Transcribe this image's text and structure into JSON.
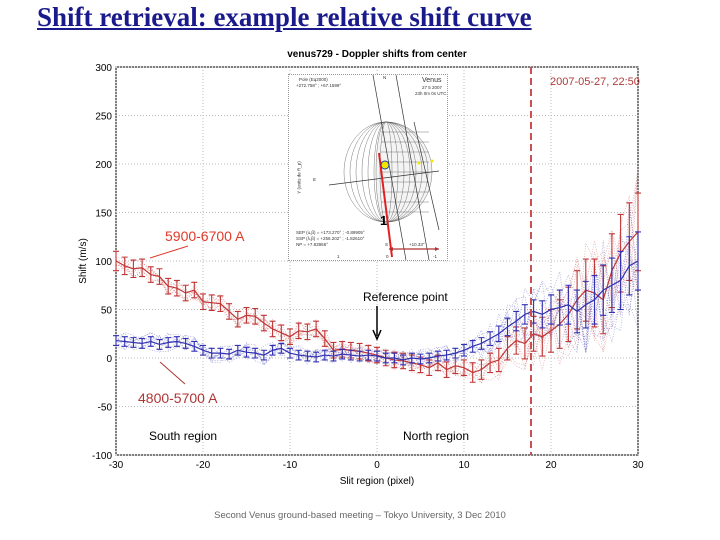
{
  "slide_title": "Shift retrieval: example relative shift curve",
  "footer": "Second Venus ground-based meeting – Tokyo University, 3 Dec 2010",
  "inset": {
    "pole": "Pole (Eq2000)",
    "pole_val": "+272.758° ; +67.1599°",
    "planet": "Venus",
    "date": "27 5 2007",
    "time": "23h 0m 0s UTC",
    "sep": "SEP (u,β) = +173.270° ; -0.89905°",
    "ssp": "SSP (λ,β) = +256.202° ; -1.82610°",
    "np": "NP = +7.83966°",
    "s_label": "S",
    "scale": "+10.33\"",
    "n_label": "N",
    "e_label": "E",
    "ylabel": "Y (units de R_p)",
    "xticks": [
      "1",
      "0",
      "-1"
    ],
    "slit_number": "1",
    "colors": {
      "slit": "#e02020",
      "point": "#f2e600",
      "arrow": "#b03030"
    }
  },
  "chart_data": {
    "type": "line",
    "title": "venus729 - Doppler shifts from center",
    "xlabel": "Slit region (pixel)",
    "ylabel": "Shift (m/s)",
    "xlim": [
      -30,
      30
    ],
    "ylim": [
      -100,
      300
    ],
    "xticks": [
      -30,
      -20,
      -10,
      0,
      10,
      20,
      30
    ],
    "yticks": [
      -100,
      -50,
      0,
      50,
      100,
      150,
      200,
      250,
      300
    ],
    "grid": true,
    "x": [
      -30,
      -29,
      -28,
      -27,
      -26,
      -25,
      -24,
      -23,
      -22,
      -21,
      -20,
      -19,
      -18,
      -17,
      -16,
      -15,
      -14,
      -13,
      -12,
      -11,
      -10,
      -9,
      -8,
      -7,
      -6,
      -5,
      -4,
      -3,
      -2,
      -1,
      0,
      1,
      2,
      3,
      4,
      5,
      6,
      7,
      8,
      9,
      10,
      11,
      12,
      13,
      14,
      15,
      16,
      17,
      18,
      19,
      20,
      21,
      22,
      23,
      24,
      25,
      26,
      27,
      28,
      29,
      30
    ],
    "series": [
      {
        "name": "5900-6700 A",
        "color": "#c03535",
        "values": [
          100,
          95,
          92,
          93,
          86,
          84,
          74,
          72,
          67,
          70,
          58,
          57,
          56,
          48,
          40,
          44,
          43,
          36,
          30,
          26,
          22,
          28,
          27,
          30,
          20,
          8,
          9,
          8,
          7,
          5,
          3,
          0,
          -2,
          -3,
          -5,
          -7,
          -10,
          -5,
          -12,
          -8,
          -10,
          -15,
          -12,
          -5,
          -2,
          10,
          18,
          15,
          25,
          22,
          28,
          35,
          45,
          60,
          70,
          67,
          60,
          90,
          108,
          120,
          130
        ],
        "errors": [
          10,
          9,
          9,
          9,
          8,
          8,
          8,
          8,
          8,
          8,
          8,
          8,
          8,
          8,
          8,
          8,
          8,
          8,
          8,
          8,
          8,
          8,
          8,
          8,
          8,
          8,
          8,
          8,
          8,
          8,
          8,
          8,
          8,
          8,
          8,
          8,
          8,
          8,
          8,
          8,
          8,
          10,
          10,
          10,
          12,
          12,
          14,
          16,
          18,
          20,
          22,
          25,
          28,
          30,
          32,
          35,
          35,
          38,
          40,
          40,
          40
        ]
      },
      {
        "name": "4800-5700 A",
        "color": "#3030b0",
        "values": [
          18,
          17,
          16,
          15,
          17,
          14,
          16,
          17,
          15,
          12,
          8,
          5,
          5,
          4,
          8,
          6,
          5,
          3,
          8,
          10,
          5,
          3,
          2,
          1,
          3,
          2,
          4,
          3,
          2,
          3,
          2,
          0,
          0,
          -2,
          0,
          -1,
          0,
          2,
          3,
          5,
          8,
          12,
          15,
          20,
          25,
          32,
          38,
          45,
          48,
          45,
          50,
          52,
          55,
          48,
          55,
          60,
          70,
          75,
          80,
          95,
          100
        ],
        "errors": [
          5,
          5,
          5,
          5,
          5,
          5,
          5,
          5,
          5,
          5,
          5,
          5,
          5,
          5,
          5,
          5,
          5,
          5,
          5,
          5,
          5,
          5,
          5,
          5,
          5,
          5,
          5,
          5,
          5,
          5,
          5,
          5,
          5,
          5,
          5,
          5,
          5,
          5,
          5,
          5,
          6,
          6,
          6,
          7,
          8,
          9,
          10,
          10,
          12,
          14,
          15,
          18,
          20,
          22,
          24,
          25,
          26,
          28,
          30,
          30,
          30
        ]
      }
    ],
    "annotations": {
      "red_label": "5900-6700 A",
      "blue_label": "4800-5700 A",
      "reference": "Reference point",
      "reference_x": 0,
      "date_line_x": 17.7,
      "date_label": "2007-05-27, 22:50",
      "south": "South region",
      "north": "North region"
    }
  }
}
